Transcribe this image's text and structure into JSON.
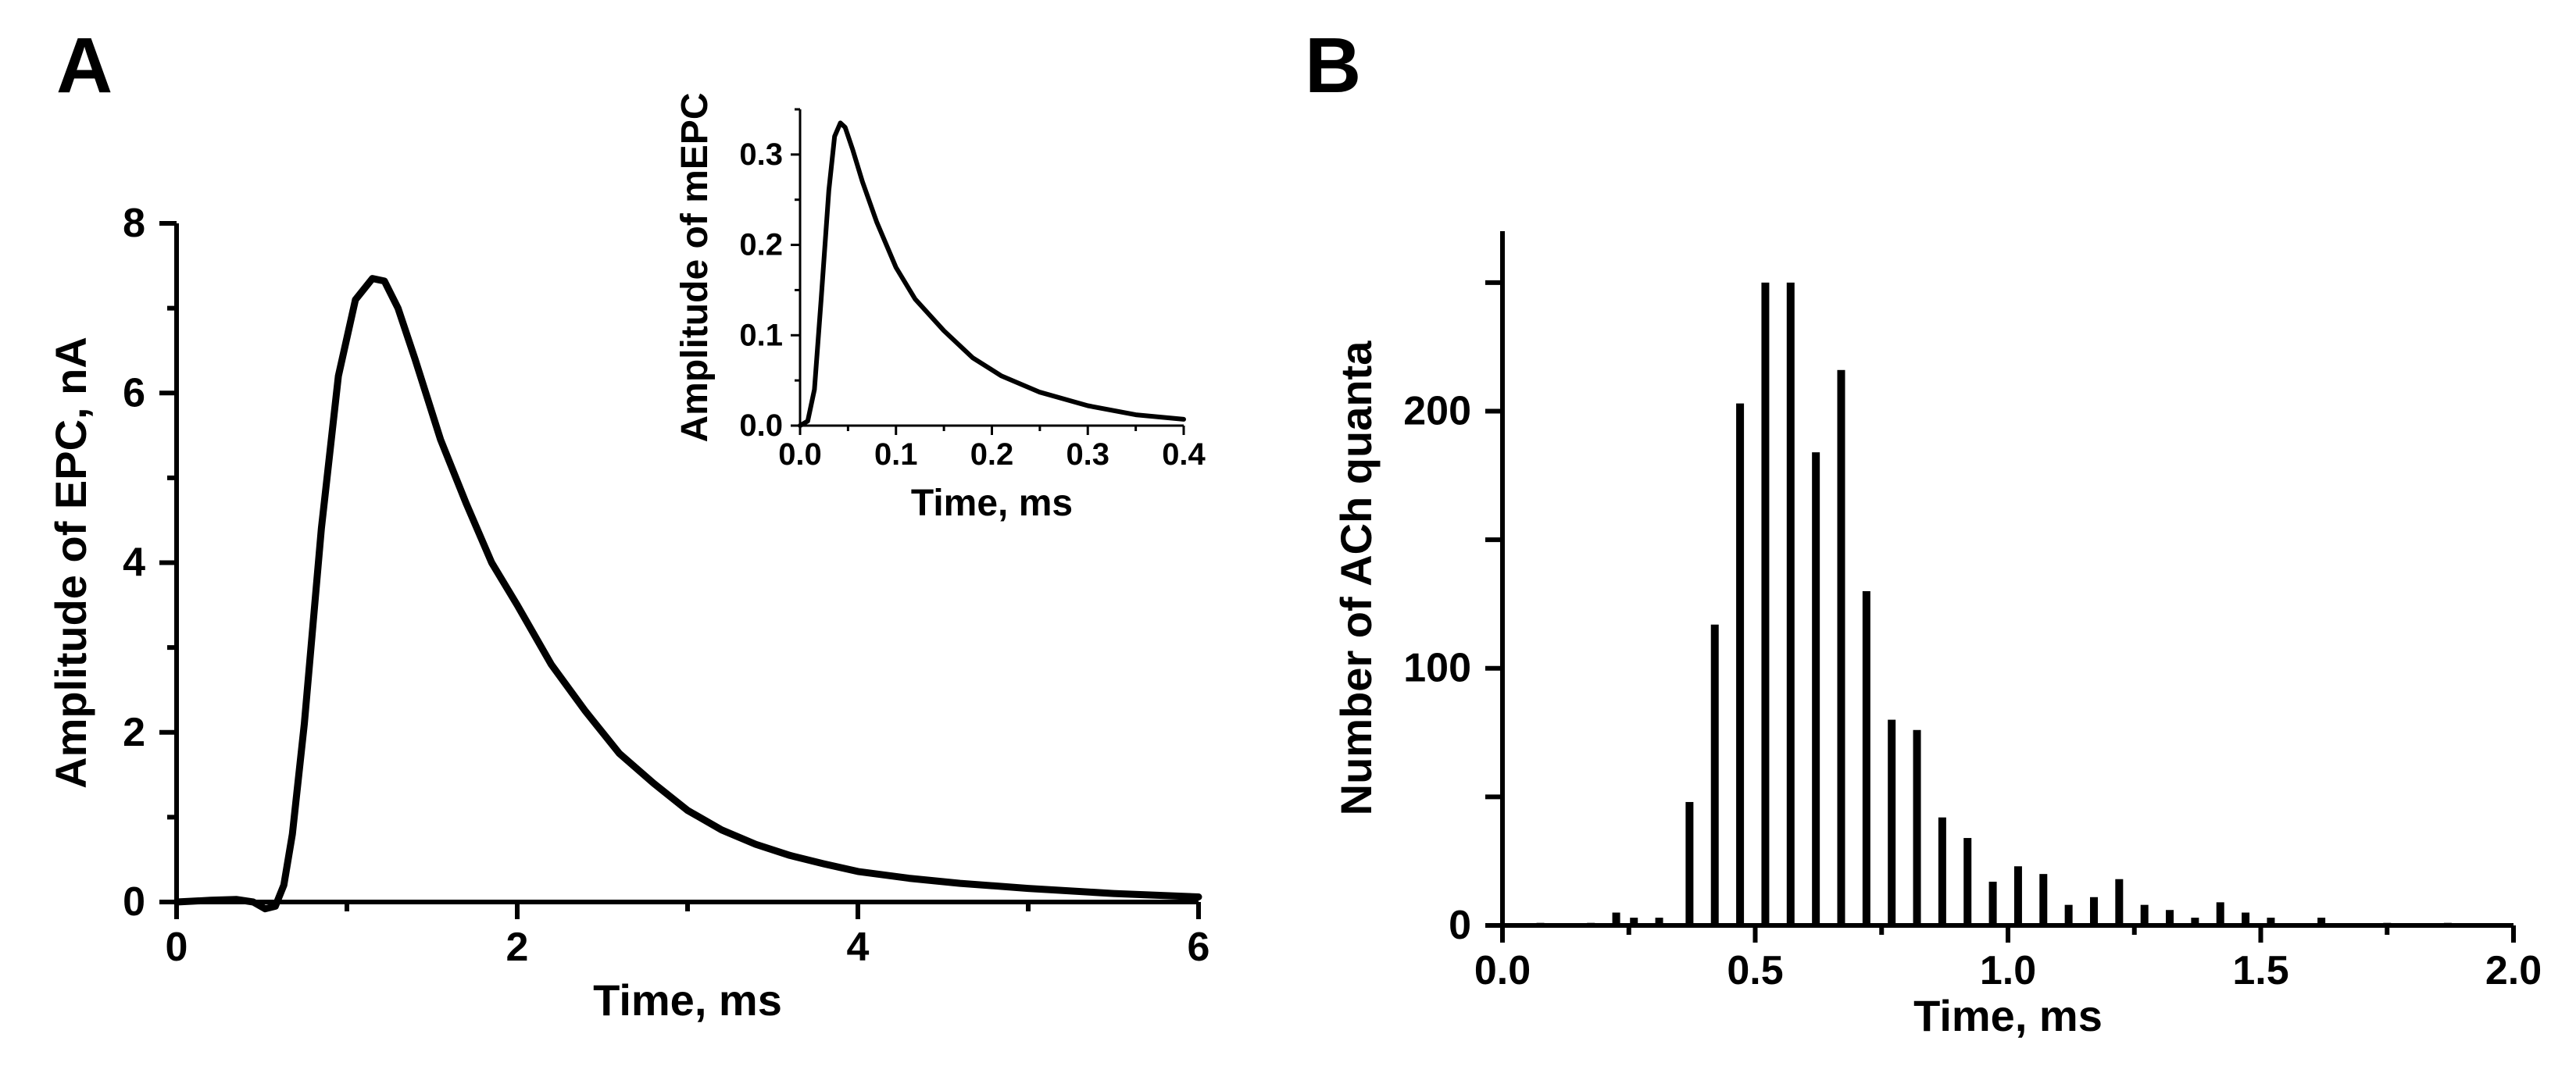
{
  "panels": {
    "a_label": "A",
    "b_label": "B"
  },
  "chart_data": [
    {
      "id": "panel-a-main",
      "type": "line",
      "title": "",
      "xlabel": "Time, ms",
      "ylabel": "Amplitude of EPC, nA",
      "xlim": [
        0,
        6
      ],
      "ylim": [
        0,
        8
      ],
      "xticks": [
        0,
        2,
        4,
        6
      ],
      "xtick_labels": [
        "0",
        "2",
        "4",
        "6"
      ],
      "yticks": [
        0,
        2,
        4,
        6,
        8
      ],
      "ytick_labels": [
        "0",
        "2",
        "4",
        "6",
        "8"
      ],
      "grid": false,
      "series": [
        {
          "name": "EPC",
          "x": [
            0,
            0.2,
            0.35,
            0.45,
            0.52,
            0.58,
            0.63,
            0.68,
            0.75,
            0.85,
            0.95,
            1.05,
            1.15,
            1.22,
            1.3,
            1.4,
            1.55,
            1.7,
            1.85,
            2.0,
            2.2,
            2.4,
            2.6,
            2.8,
            3.0,
            3.2,
            3.4,
            3.6,
            3.8,
            4.0,
            4.3,
            4.6,
            5.0,
            5.5,
            6.0
          ],
          "y": [
            0,
            0.02,
            0.03,
            0.0,
            -0.08,
            -0.05,
            0.2,
            0.8,
            2.1,
            4.4,
            6.2,
            7.1,
            7.35,
            7.32,
            7.0,
            6.4,
            5.45,
            4.7,
            4.0,
            3.5,
            2.8,
            2.25,
            1.75,
            1.4,
            1.08,
            0.85,
            0.68,
            0.55,
            0.45,
            0.36,
            0.28,
            0.22,
            0.16,
            0.1,
            0.06
          ]
        }
      ]
    },
    {
      "id": "panel-a-inset",
      "type": "line",
      "title": "",
      "xlabel": "Time, ms",
      "ylabel": "Amplitude of mEPC",
      "xlim": [
        0,
        0.4
      ],
      "ylim": [
        0,
        0.35
      ],
      "xticks": [
        0,
        0.1,
        0.2,
        0.3,
        0.4
      ],
      "xtick_labels": [
        "0.0",
        "0.1",
        "0.2",
        "0.3",
        "0.4"
      ],
      "yticks": [
        0,
        0.1,
        0.2,
        0.3
      ],
      "ytick_labels": [
        "0.0",
        "0.1",
        "0.2",
        "0.3"
      ],
      "grid": false,
      "series": [
        {
          "name": "mEPC",
          "x": [
            0.0,
            0.008,
            0.015,
            0.022,
            0.03,
            0.036,
            0.042,
            0.047,
            0.055,
            0.065,
            0.08,
            0.1,
            0.12,
            0.15,
            0.18,
            0.21,
            0.25,
            0.3,
            0.35,
            0.4
          ],
          "y": [
            0.0,
            0.005,
            0.04,
            0.14,
            0.26,
            0.32,
            0.335,
            0.33,
            0.305,
            0.27,
            0.225,
            0.175,
            0.14,
            0.105,
            0.075,
            0.055,
            0.037,
            0.022,
            0.012,
            0.007
          ]
        }
      ]
    },
    {
      "id": "panel-b",
      "type": "bar",
      "title": "",
      "xlabel": "Time, ms",
      "ylabel": "Number of ACh quanta",
      "xlim": [
        0,
        2.0
      ],
      "ylim": [
        0,
        270
      ],
      "xticks": [
        0,
        0.5,
        1.0,
        1.5,
        2.0
      ],
      "xtick_labels": [
        "0.0",
        "0.5",
        "1.0",
        "1.5",
        "2.0"
      ],
      "yticks": [
        0,
        50,
        100,
        150,
        200,
        250
      ],
      "ytick_labels": [
        "0",
        "",
        "100",
        "",
        "200",
        ""
      ],
      "grid": false,
      "x": [
        0.075,
        0.175,
        0.225,
        0.26,
        0.31,
        0.37,
        0.42,
        0.47,
        0.52,
        0.57,
        0.62,
        0.67,
        0.72,
        0.77,
        0.82,
        0.87,
        0.92,
        0.97,
        1.02,
        1.07,
        1.12,
        1.17,
        1.22,
        1.27,
        1.32,
        1.37,
        1.42,
        1.47,
        1.52,
        1.62,
        1.75,
        1.87
      ],
      "values": [
        1,
        1,
        5,
        3,
        3,
        48,
        117,
        203,
        250,
        250,
        184,
        216,
        130,
        80,
        76,
        42,
        34,
        17,
        23,
        20,
        8,
        11,
        18,
        8,
        6,
        3,
        9,
        5,
        3,
        3,
        1,
        1
      ]
    }
  ]
}
